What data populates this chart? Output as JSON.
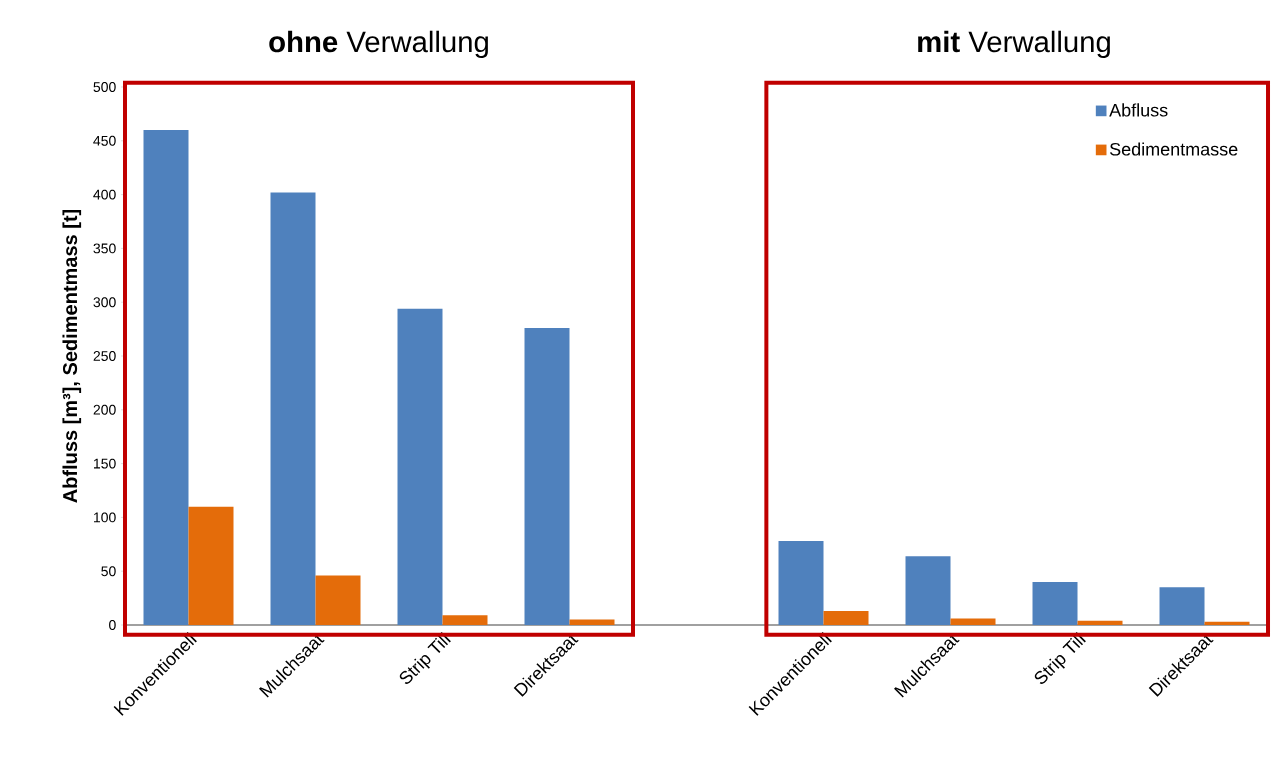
{
  "chart_data": {
    "type": "bar",
    "ylabel": "Abfluss [m³], Sedimentmass [t]",
    "annotations": [
      "**ohne** Verwallung",
      "**mit** Verwallung"
    ],
    "categories": [
      "Konventionell",
      "Mulchsaat",
      "Strip Till",
      "Direktsaat",
      null,
      "Konventionell",
      "Mulchsaat",
      "Strip Till",
      "Direktsaat"
    ],
    "series": [
      {
        "name": "Abfluss",
        "color": "#4f81bd",
        "values": [
          460,
          402,
          294,
          276,
          null,
          78,
          64,
          40,
          35
        ]
      },
      {
        "name": "Sedimentmasse",
        "color": "#e46c0a",
        "values": [
          110,
          46,
          9,
          5,
          null,
          13,
          6,
          4,
          3
        ]
      }
    ],
    "ylim": [
      0,
      500
    ],
    "yticks": [
      0,
      50,
      100,
      150,
      200,
      250,
      300,
      350,
      400,
      450,
      500
    ],
    "legend": "top right"
  }
}
